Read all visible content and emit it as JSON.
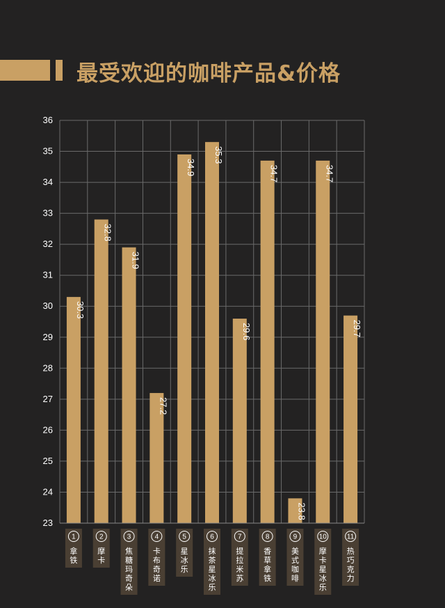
{
  "title": "最受欢迎的咖啡产品&价格",
  "colors": {
    "bar": "#c9a064",
    "background": "#232222",
    "grid": "#6b6b6b",
    "label_box": "#4a3f33"
  },
  "chart_data": {
    "type": "bar",
    "title": "最受欢迎的咖啡产品&价格",
    "ylim": [
      23,
      36
    ],
    "yticks": [
      23,
      24,
      25,
      26,
      27,
      28,
      29,
      30,
      31,
      32,
      33,
      34,
      35,
      36
    ],
    "grid": true,
    "categories": [
      {
        "num": "1",
        "name": "拿铁"
      },
      {
        "num": "2",
        "name": "摩卡"
      },
      {
        "num": "3",
        "name": "焦糖玛奇朵"
      },
      {
        "num": "4",
        "name": "卡布奇诺"
      },
      {
        "num": "5",
        "name": "星冰乐"
      },
      {
        "num": "6",
        "name": "抹茶星冰乐"
      },
      {
        "num": "7",
        "name": "提拉米苏"
      },
      {
        "num": "8",
        "name": "香草拿铁"
      },
      {
        "num": "9",
        "name": "美式咖啡"
      },
      {
        "num": "10",
        "name": "摩卡星冰乐"
      },
      {
        "num": "11",
        "name": "热巧克力"
      }
    ],
    "values": [
      30.3,
      32.8,
      31.9,
      27.2,
      34.9,
      35.3,
      29.6,
      34.7,
      23.8,
      34.7,
      29.7
    ],
    "value_labels": [
      "30.3",
      "32.8",
      "31.9",
      "27.2",
      "34.9",
      "35.3",
      "29.6",
      "34.7",
      "23.8",
      "34.7",
      "29.7"
    ]
  }
}
